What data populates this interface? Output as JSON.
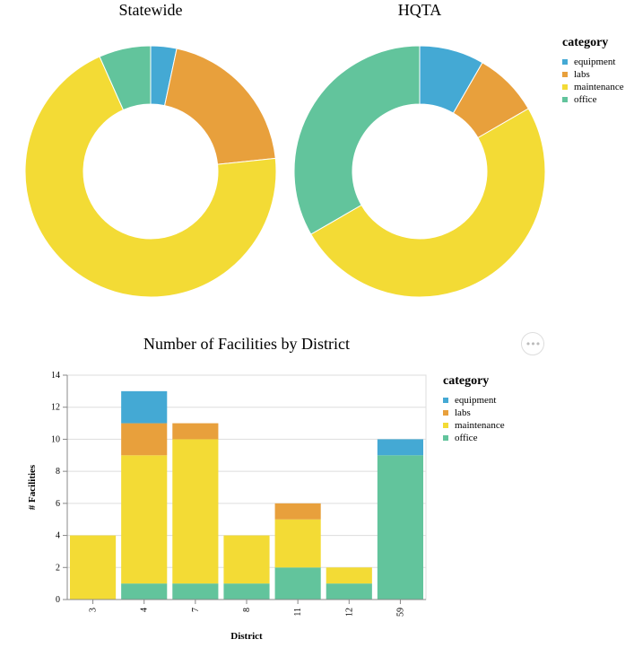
{
  "colors": {
    "equipment": "#44a9d4",
    "labs": "#e8a03c",
    "maintenance": "#f3db35",
    "office": "#62c49c"
  },
  "icons": {
    "menu": "ellipsis-icon"
  },
  "chart_data": [
    {
      "type": "pie",
      "variant": "donut",
      "title": "Statewide",
      "categories": [
        "equipment",
        "labs",
        "maintenance",
        "office"
      ],
      "values": [
        1,
        6,
        21,
        2
      ]
    },
    {
      "type": "pie",
      "variant": "donut",
      "title": "HQTA",
      "categories": [
        "equipment",
        "labs",
        "maintenance",
        "office"
      ],
      "values": [
        1,
        1,
        6,
        4
      ]
    },
    {
      "type": "bar",
      "stacked": true,
      "title": "Number of Facilities by District",
      "xlabel": "District",
      "ylabel": "# Facilities",
      "ylim": [
        0,
        14
      ],
      "yticks": [
        0,
        2,
        4,
        6,
        8,
        10,
        12,
        14
      ],
      "grid": true,
      "categories": [
        "3",
        "4",
        "7",
        "8",
        "11",
        "12",
        "59"
      ],
      "series": [
        {
          "name": "office",
          "values": [
            0,
            1,
            1,
            1,
            2,
            1,
            9
          ]
        },
        {
          "name": "maintenance",
          "values": [
            4,
            8,
            9,
            3,
            3,
            1,
            0
          ]
        },
        {
          "name": "labs",
          "values": [
            0,
            2,
            1,
            0,
            1,
            0,
            0
          ]
        },
        {
          "name": "equipment",
          "values": [
            0,
            2,
            0,
            0,
            0,
            0,
            1
          ]
        }
      ]
    }
  ],
  "legends": [
    {
      "title": "category",
      "items": [
        "equipment",
        "labs",
        "maintenance",
        "office"
      ]
    },
    {
      "title": "category",
      "items": [
        "equipment",
        "labs",
        "maintenance",
        "office"
      ]
    }
  ]
}
